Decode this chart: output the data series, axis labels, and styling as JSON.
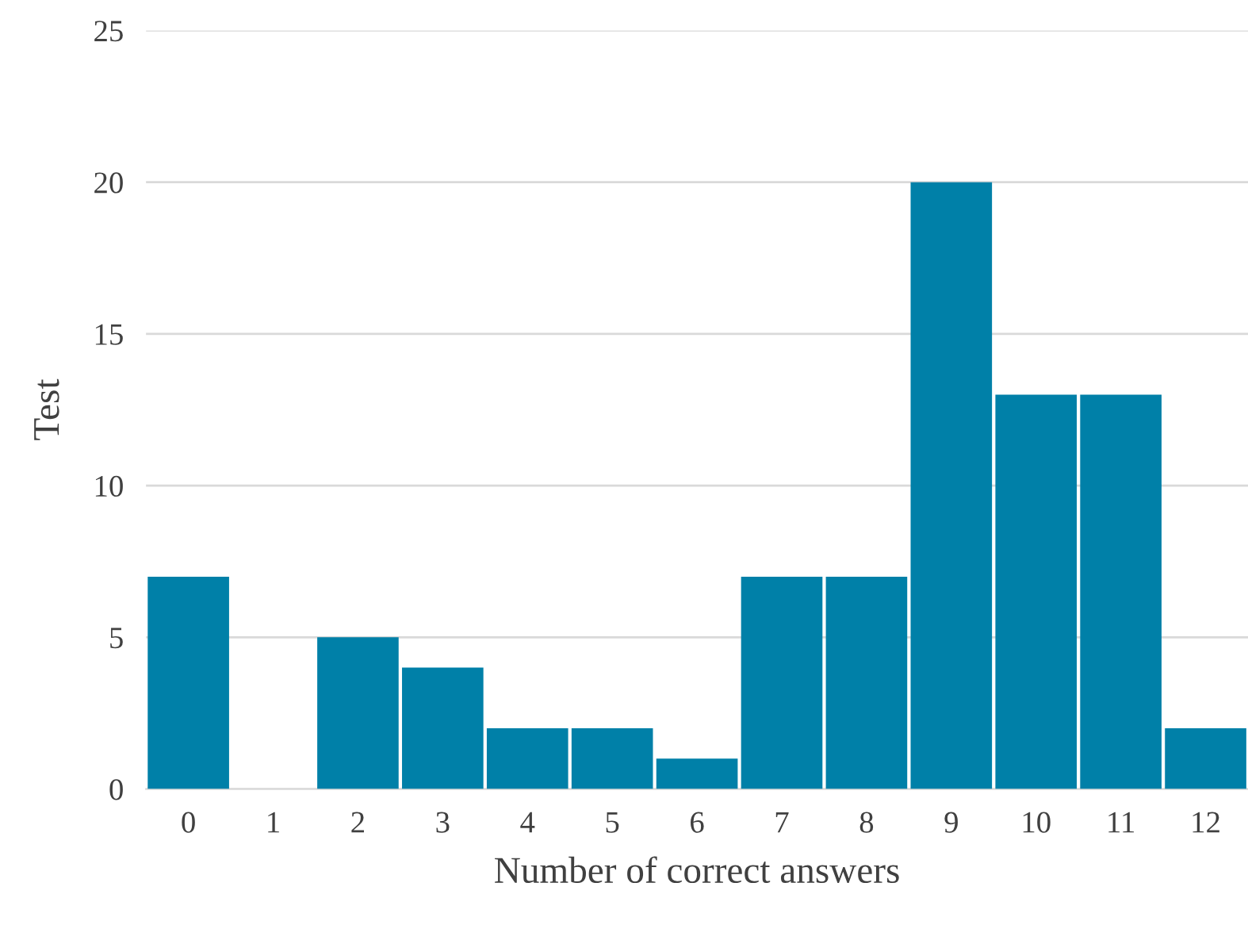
{
  "chart_data": {
    "type": "bar",
    "categories": [
      "0",
      "1",
      "2",
      "3",
      "4",
      "5",
      "6",
      "7",
      "8",
      "9",
      "10",
      "11",
      "12"
    ],
    "values": [
      7,
      0,
      5,
      4,
      2,
      2,
      1,
      7,
      7,
      20,
      13,
      13,
      2
    ],
    "color": "#0080a8",
    "xlabel": "Number of correct answers",
    "ylabel": "Test",
    "ylim": [
      0,
      25
    ],
    "yticks": [
      0,
      5,
      10,
      15,
      20,
      25
    ],
    "grid": "y",
    "legend": false
  }
}
